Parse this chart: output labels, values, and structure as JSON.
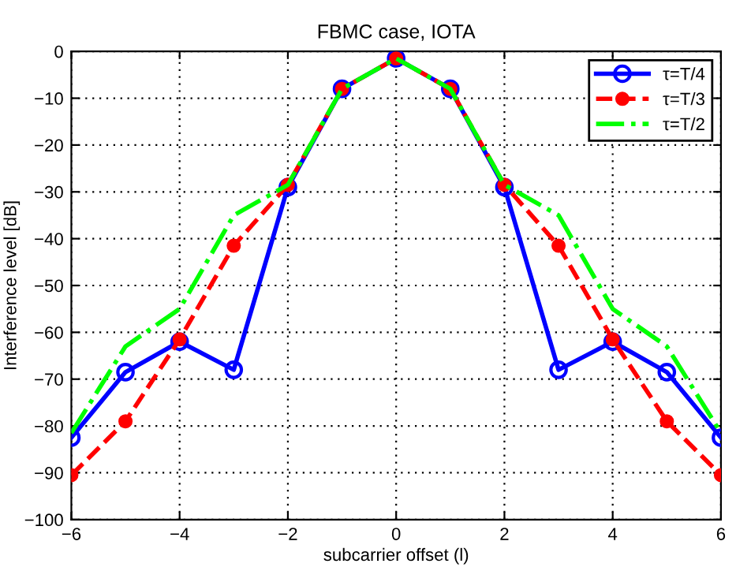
{
  "chart_data": {
    "type": "line",
    "title": "FBMC case, IOTA",
    "xlabel": "subcarrier offset (l)",
    "ylabel": "Interference level [dB]",
    "x": [
      -6,
      -5,
      -4,
      -3,
      -2,
      -1,
      0,
      1,
      2,
      3,
      4,
      5,
      6
    ],
    "series": [
      {
        "name": "τ=T/4",
        "color": "#0000ff",
        "marker": "circle",
        "line_style": "solid",
        "values": [
          -82.5,
          -68.5,
          -62,
          -68,
          -29,
          -8,
          -1.5,
          -8,
          -29,
          -68,
          -62,
          -68.5,
          -82.5
        ]
      },
      {
        "name": "τ=T/3",
        "color": "#ff0000",
        "marker": "circle",
        "line_style": "dashed",
        "values": [
          -90.5,
          -79,
          -61.5,
          -41.5,
          -28.5,
          -8,
          -1.5,
          -8,
          -28.5,
          -41.5,
          -61.5,
          -79,
          -90.5
        ]
      },
      {
        "name": "τ=T/2",
        "color": "#00ff00",
        "marker": "none",
        "line_style": "dashdot",
        "values": [
          -81.5,
          -63,
          -55,
          -35,
          -28.5,
          -8,
          -1.5,
          -8,
          -28.5,
          -35,
          -55,
          -63,
          -81.5
        ]
      }
    ],
    "xlim": [
      -6,
      6
    ],
    "xticks": [
      -6,
      -4,
      -2,
      0,
      2,
      4,
      6
    ],
    "ylim": [
      -100,
      0
    ],
    "yticks": [
      -100,
      -90,
      -80,
      -70,
      -60,
      -50,
      -40,
      -30,
      -20,
      -10,
      0
    ],
    "grid": true,
    "legend": "top right"
  }
}
